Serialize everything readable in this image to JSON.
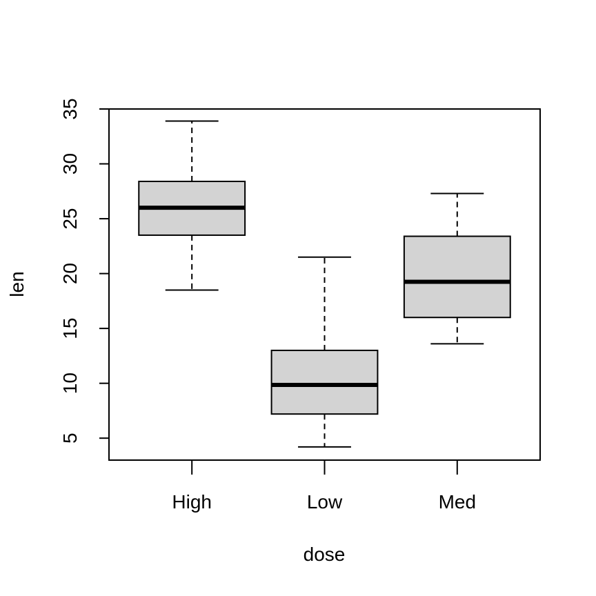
{
  "chart_data": {
    "type": "boxplot",
    "title": "",
    "xlabel": "dose",
    "ylabel": "len",
    "categories": [
      "High",
      "Low",
      "Med"
    ],
    "boxes": [
      {
        "name": "High",
        "whisker_low": 18.5,
        "q1": 23.5,
        "median": 26.0,
        "q3": 28.4,
        "whisker_high": 33.9
      },
      {
        "name": "Low",
        "whisker_low": 4.2,
        "q1": 7.2,
        "median": 9.85,
        "q3": 13.0,
        "whisker_high": 21.5
      },
      {
        "name": "Med",
        "whisker_low": 13.6,
        "q1": 16.0,
        "median": 19.25,
        "q3": 23.4,
        "whisker_high": 27.3
      }
    ],
    "yticks": [
      5,
      10,
      15,
      20,
      25,
      30,
      35
    ],
    "ylim": [
      3.0,
      35.0
    ],
    "box_fill": "#d3d3d3",
    "line_color": "#000000"
  }
}
